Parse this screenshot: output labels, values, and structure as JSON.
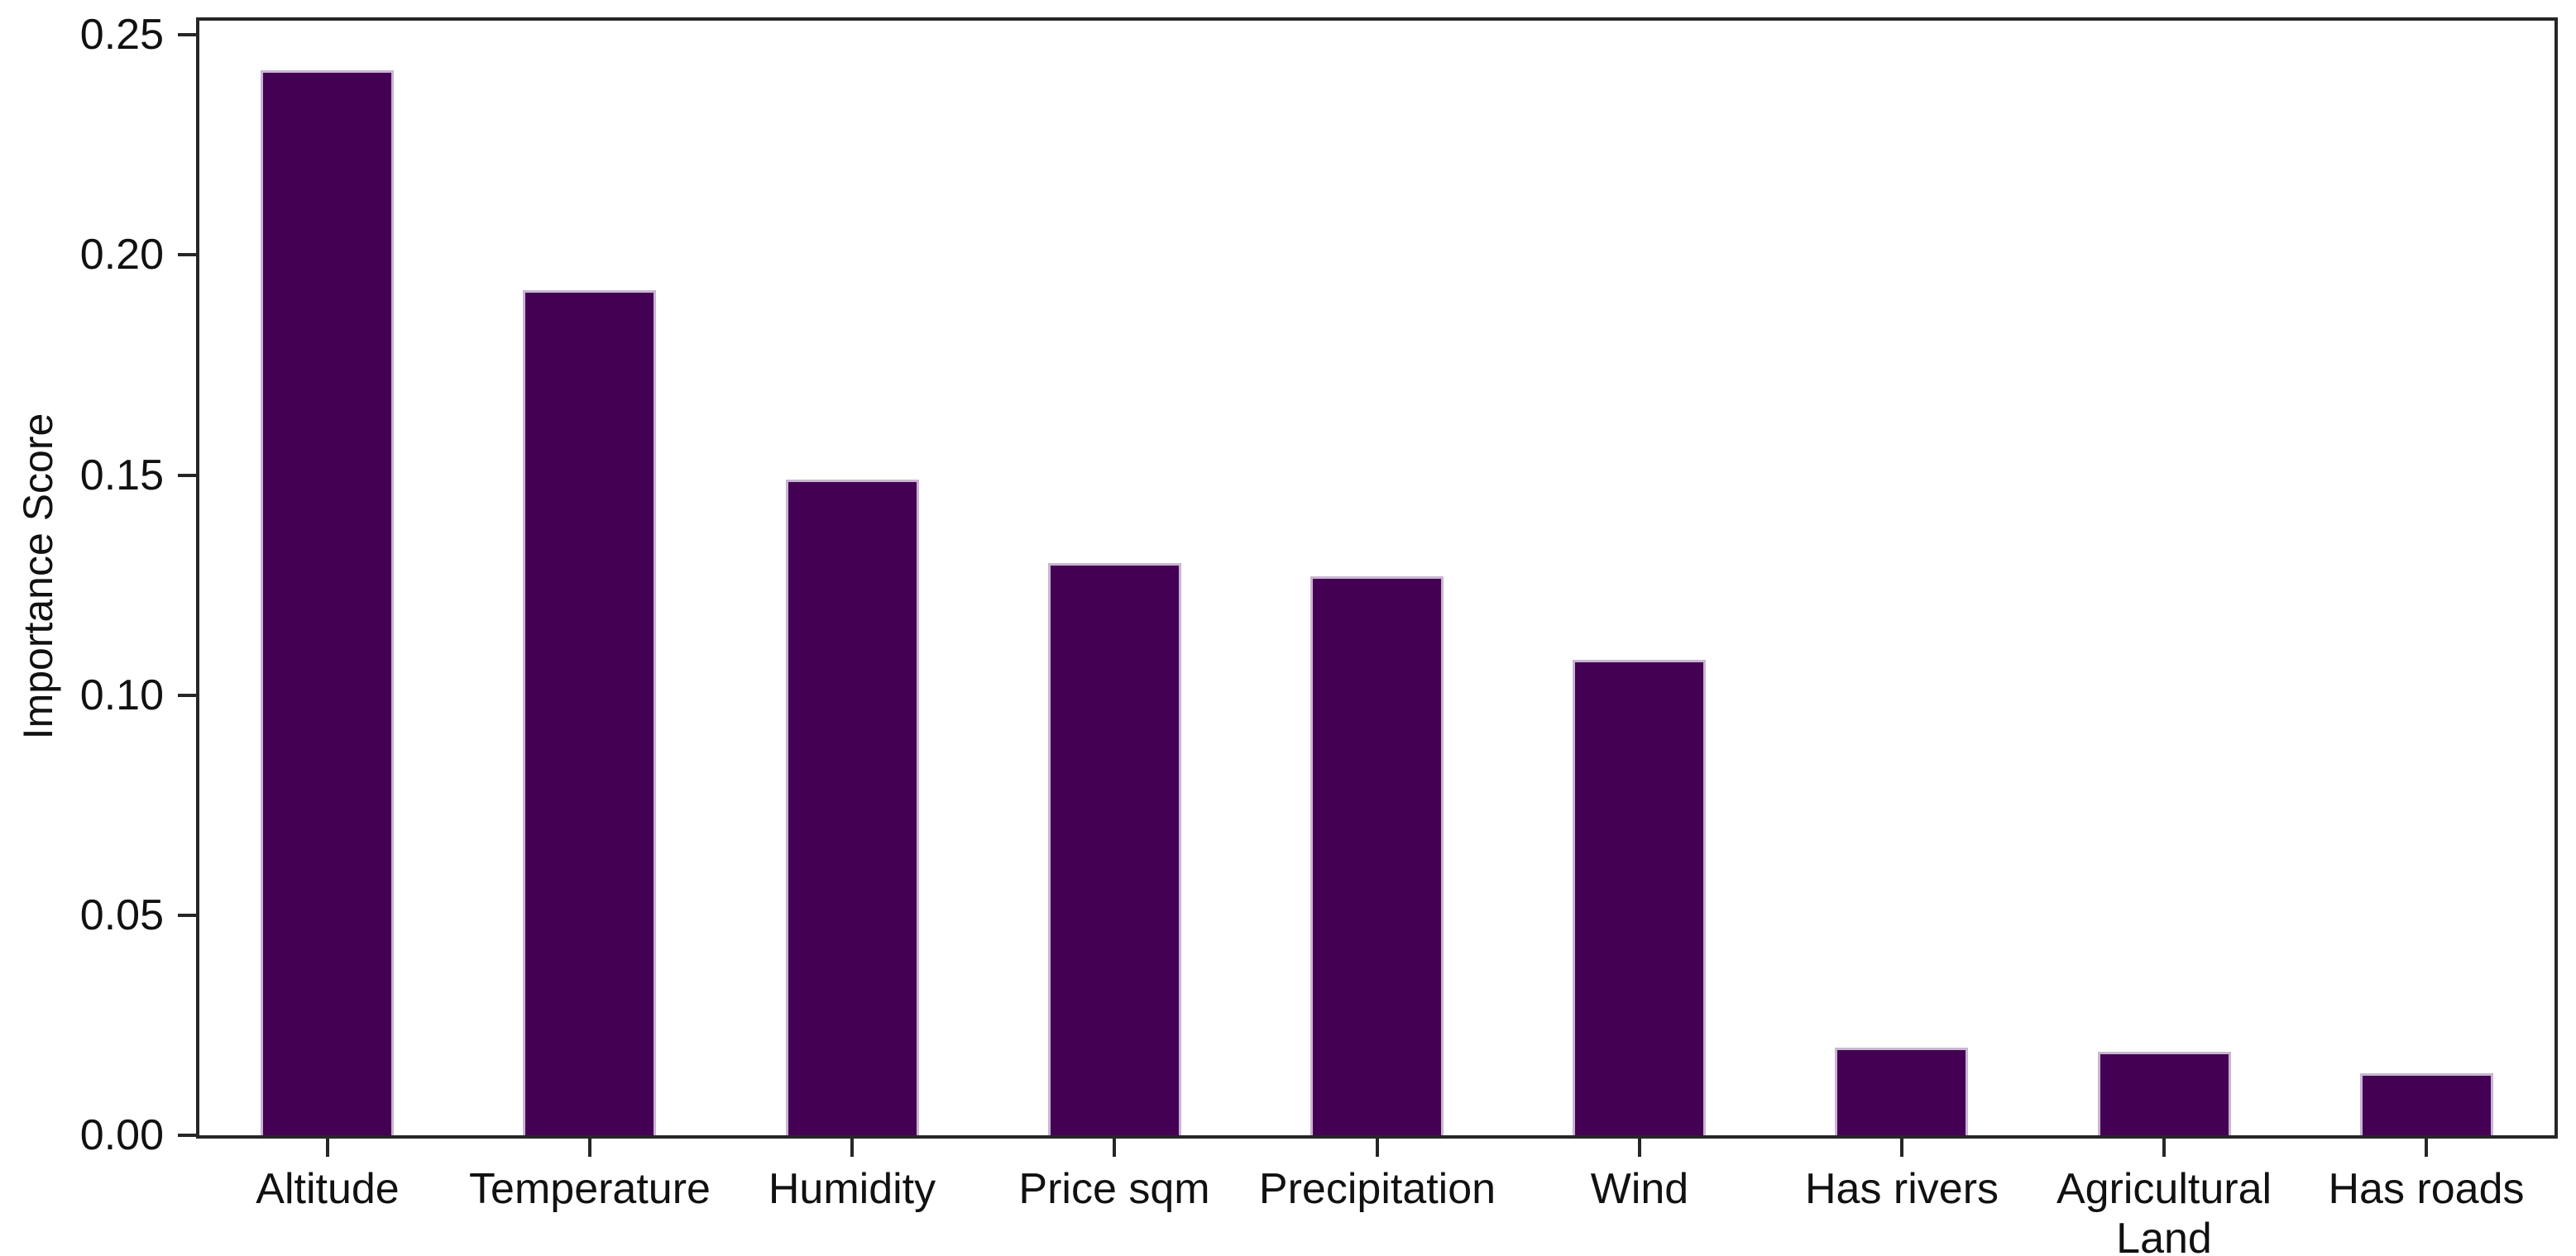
{
  "chart_data": {
    "type": "bar",
    "title": "",
    "xlabel": "",
    "ylabel": "Importance Score",
    "categories": [
      "Altitude",
      "Temperature",
      "Humidity",
      "Price sqm",
      "Precipitation",
      "Wind",
      "Has rivers",
      "Agricultural\nLand",
      "Has roads"
    ],
    "values": [
      0.242,
      0.192,
      0.149,
      0.13,
      0.127,
      0.108,
      0.02,
      0.019,
      0.014
    ],
    "yticks": [
      "0.00",
      "0.05",
      "0.10",
      "0.15",
      "0.20",
      "0.25"
    ],
    "ylim": [
      0,
      0.254
    ],
    "grid": false,
    "legend": "none",
    "bar_color": "#440154",
    "bar_edge_color": "#c9b5d3",
    "axis_color": "#262626",
    "text_color": "#111111",
    "background_color": "#ffffff"
  }
}
